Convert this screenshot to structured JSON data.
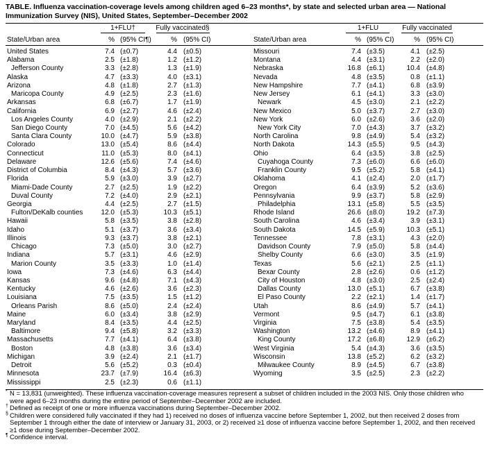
{
  "title": "TABLE. Influenza vaccination-coverage levels among children aged 6–23 months*, by state and selected urban area — National Immunization Survey (NIS), United States, September–December 2002",
  "panels": [
    {
      "headers": {
        "group1": "1+FLU†",
        "group2": "Fully vaccinated§",
        "area": "State/Urban area",
        "pct1": "%",
        "ci1": "(95% CI¶)",
        "pct2": "%",
        "ci2": "(95% CI)"
      },
      "rows": [
        {
          "name": "United States",
          "values": [
            "7.4",
            "(±0.7)",
            "4.4",
            "(±0.5)"
          ]
        },
        {
          "name": "Alabama",
          "values": [
            "2.5",
            "(±1.8)",
            "1.2",
            "(±1.2)"
          ],
          "areas": [
            {
              "name": "Jefferson County",
              "values": [
                "3.3",
                "(±2.8)",
                "1.3",
                "(±1.9)"
              ]
            }
          ]
        },
        {
          "name": "Alaska",
          "values": [
            "4.7",
            "(±3.3)",
            "4.0",
            "(±3.1)"
          ]
        },
        {
          "name": "Arizona",
          "values": [
            "4.8",
            "(±1.8)",
            "2.7",
            "(±1.3)"
          ],
          "areas": [
            {
              "name": "Maricopa County",
              "values": [
                "4.9",
                "(±2.5)",
                "2.3",
                "(±1.6)"
              ]
            }
          ]
        },
        {
          "name": "Arkansas",
          "values": [
            "6.8",
            "(±6.7)",
            "1.7",
            "(±1.9)"
          ]
        },
        {
          "name": "California",
          "values": [
            "6.9",
            "(±2.7)",
            "4.6",
            "(±2.4)"
          ],
          "areas": [
            {
              "name": "Los Angeles County",
              "values": [
                "4.0",
                "(±2.9)",
                "2.1",
                "(±2.2)"
              ]
            },
            {
              "name": "San Diego County",
              "values": [
                "7.0",
                "(±4.5)",
                "5.6",
                "(±4.2)"
              ]
            },
            {
              "name": "Santa Clara County",
              "values": [
                "10.0",
                "(±4.7)",
                "5.9",
                "(±3.8)"
              ]
            }
          ]
        },
        {
          "name": "Colorado",
          "values": [
            "13.0",
            "(±5.4)",
            "8.6",
            "(±4.4)"
          ]
        },
        {
          "name": "Connecticut",
          "values": [
            "11.0",
            "(±5.3)",
            "8.0",
            "(±4.1)"
          ]
        },
        {
          "name": "Delaware",
          "values": [
            "12.6",
            "(±5.6)",
            "7.4",
            "(±4.6)"
          ]
        },
        {
          "name": "District of Columbia",
          "values": [
            "8.4",
            "(±4.3)",
            "5.7",
            "(±3.6)"
          ]
        },
        {
          "name": "Florida",
          "values": [
            "5.9",
            "(±3.0)",
            "3.9",
            "(±2.7)"
          ],
          "areas": [
            {
              "name": "Miami-Dade County",
              "values": [
                "2.7",
                "(±2.5)",
                "1.9",
                "(±2.2)"
              ]
            },
            {
              "name": "Duval County",
              "values": [
                "7.2",
                "(±4.0)",
                "2.9",
                "(±2.1)"
              ]
            }
          ]
        },
        {
          "name": "Georgia",
          "values": [
            "4.4",
            "(±2.5)",
            "2.7",
            "(±1.5)"
          ],
          "areas": [
            {
              "name": "Fulton/DeKalb counties",
              "values": [
                "12.0",
                "(±5.3)",
                "10.3",
                "(±5.1)"
              ]
            }
          ]
        },
        {
          "name": "Hawaii",
          "values": [
            "5.8",
            "(±3.5)",
            "3.8",
            "(±2.8)"
          ]
        },
        {
          "name": "Idaho",
          "values": [
            "5.1",
            "(±3.7)",
            "3.6",
            "(±3.4)"
          ]
        },
        {
          "name": "Illinois",
          "values": [
            "9.3",
            "(±3.7)",
            "3.8",
            "(±2.1)"
          ],
          "areas": [
            {
              "name": "Chicago",
              "values": [
                "7.3",
                "(±5.0)",
                "3.0",
                "(±2.7)"
              ]
            }
          ]
        },
        {
          "name": "Indiana",
          "values": [
            "5.7",
            "(±3.1)",
            "4.6",
            "(±2.9)"
          ],
          "areas": [
            {
              "name": "Marion County",
              "values": [
                "3.5",
                "(±3.3)",
                "1.0",
                "(±1.4)"
              ]
            }
          ]
        },
        {
          "name": "Iowa",
          "values": [
            "7.3",
            "(±4.6)",
            "6.3",
            "(±4.4)"
          ]
        },
        {
          "name": "Kansas",
          "values": [
            "9.6",
            "(±4.8)",
            "7.1",
            "(±4.3)"
          ]
        },
        {
          "name": "Kentucky",
          "values": [
            "4.6",
            "(±2.6)",
            "3.6",
            "(±2.3)"
          ]
        },
        {
          "name": "Louisiana",
          "values": [
            "7.5",
            "(±3.5)",
            "1.5",
            "(±1.2)"
          ],
          "areas": [
            {
              "name": "Orleans Parish",
              "values": [
                "8.6",
                "(±5.0)",
                "2.4",
                "(±2.4)"
              ]
            }
          ]
        },
        {
          "name": "Maine",
          "values": [
            "6.0",
            "(±3.4)",
            "3.8",
            "(±2.9)"
          ]
        },
        {
          "name": "Maryland",
          "values": [
            "8.4",
            "(±3.5)",
            "4.4",
            "(±2.5)"
          ],
          "areas": [
            {
              "name": "Baltimore",
              "values": [
                "9.4",
                "(±5.8)",
                "3.2",
                "(±3.3)"
              ]
            }
          ]
        },
        {
          "name": "Massachusetts",
          "values": [
            "7.7",
            "(±4.1)",
            "6.4",
            "(±3.8)"
          ],
          "areas": [
            {
              "name": "Boston",
              "values": [
                "4.8",
                "(±3.8)",
                "3.6",
                "(±3.4)"
              ]
            }
          ]
        },
        {
          "name": "Michigan",
          "values": [
            "3.9",
            "(±2.4)",
            "2.1",
            "(±1.7)"
          ],
          "areas": [
            {
              "name": "Detroit",
              "values": [
                "5.6",
                "(±5.2)",
                "0.3",
                "(±0.4)"
              ]
            }
          ]
        },
        {
          "name": "Minnesota",
          "values": [
            "23.7",
            "(±7.9)",
            "16.4",
            "(±6.3)"
          ]
        },
        {
          "name": "Mississippi",
          "values": [
            "2.5",
            "(±2.3)",
            "0.6",
            "(±1.1)"
          ]
        }
      ]
    },
    {
      "headers": {
        "group1": "1+FLU",
        "group2": "Fully vaccinated",
        "area": "State/Urban area",
        "pct1": "%",
        "ci1": "(95% CI)",
        "pct2": "%",
        "ci2": "(95% CI)"
      },
      "rows": [
        {
          "name": "Missouri",
          "values": [
            "7.4",
            "(±3.5)",
            "4.1",
            "(±2.5)"
          ]
        },
        {
          "name": "Montana",
          "values": [
            "4.4",
            "(±3.1)",
            "2.2",
            "(±2.0)"
          ]
        },
        {
          "name": "Nebraska",
          "values": [
            "16.8",
            "(±6.1)",
            "10.4",
            "(±4.8)"
          ]
        },
        {
          "name": "Nevada",
          "values": [
            "4.8",
            "(±3.5)",
            "0.8",
            "(±1.1)"
          ]
        },
        {
          "name": "New Hampshire",
          "values": [
            "7.7",
            "(±4.1)",
            "6.8",
            "(±3.9)"
          ]
        },
        {
          "name": "New Jersey",
          "values": [
            "6.1",
            "(±4.1)",
            "3.3",
            "(±3.0)"
          ],
          "areas": [
            {
              "name": "Newark",
              "values": [
                "4.5",
                "(±3.0)",
                "2.1",
                "(±2.2)"
              ]
            }
          ]
        },
        {
          "name": "New Mexico",
          "values": [
            "5.0",
            "(±3.7)",
            "2.7",
            "(±3.0)"
          ]
        },
        {
          "name": "New York",
          "values": [
            "6.0",
            "(±2.6)",
            "3.6",
            "(±2.0)"
          ],
          "areas": [
            {
              "name": "New York City",
              "values": [
                "7.0",
                "(±4.3)",
                "3.7",
                "(±3.2)"
              ]
            }
          ]
        },
        {
          "name": "North Carolina",
          "values": [
            "9.8",
            "(±4.9)",
            "5.4",
            "(±3.2)"
          ]
        },
        {
          "name": "North Dakota",
          "values": [
            "14.3",
            "(±5.5)",
            "9.5",
            "(±4.3)"
          ]
        },
        {
          "name": "Ohio",
          "values": [
            "6.4",
            "(±3.5)",
            "3.8",
            "(±2.5)"
          ],
          "areas": [
            {
              "name": "Cuyahoga County",
              "values": [
                "7.3",
                "(±6.0)",
                "6.6",
                "(±6.0)"
              ]
            },
            {
              "name": "Franklin County",
              "values": [
                "9.5",
                "(±5.2)",
                "5.8",
                "(±4.1)"
              ]
            }
          ]
        },
        {
          "name": "Oklahoma",
          "values": [
            "4.1",
            "(±2.4)",
            "2.0",
            "(±1.7)"
          ]
        },
        {
          "name": "Oregon",
          "values": [
            "6.4",
            "(±3.9)",
            "5.2",
            "(±3.6)"
          ]
        },
        {
          "name": "Pennsylvania",
          "values": [
            "9.9",
            "(±3.7)",
            "5.8",
            "(±2.9)"
          ],
          "areas": [
            {
              "name": "Philadelphia",
              "values": [
                "13.1",
                "(±5.8)",
                "5.5",
                "(±3.5)"
              ]
            }
          ]
        },
        {
          "name": "Rhode Island",
          "values": [
            "26.6",
            "(±8.0)",
            "19.2",
            "(±7.3)"
          ]
        },
        {
          "name": "South Carolina",
          "values": [
            "4.6",
            "(±3.4)",
            "3.9",
            "(±3.1)"
          ]
        },
        {
          "name": "South Dakota",
          "values": [
            "14.5",
            "(±5.9)",
            "10.3",
            "(±5.1)"
          ]
        },
        {
          "name": "Tennessee",
          "values": [
            "7.8",
            "(±3.1)",
            "4.3",
            "(±2.0)"
          ],
          "areas": [
            {
              "name": "Davidson County",
              "values": [
                "7.9",
                "(±5.0)",
                "5.8",
                "(±4.4)"
              ]
            },
            {
              "name": "Shelby County",
              "values": [
                "6.6",
                "(±3.0)",
                "3.5",
                "(±1.9)"
              ]
            }
          ]
        },
        {
          "name": "Texas",
          "values": [
            "5.6",
            "(±2.1)",
            "2.5",
            "(±1.1)"
          ],
          "areas": [
            {
              "name": "Bexar County",
              "values": [
                "2.8",
                "(±2.6)",
                "0.6",
                "(±1.2)"
              ]
            },
            {
              "name": "City of Houston",
              "values": [
                "4.8",
                "(±3.0)",
                "2.5",
                "(±2.4)"
              ]
            },
            {
              "name": "Dallas County",
              "values": [
                "13.0",
                "(±5.1)",
                "6.7",
                "(±3.8)"
              ]
            },
            {
              "name": "El Paso County",
              "values": [
                "2.2",
                "(±2.1)",
                "1.4",
                "(±1.7)"
              ]
            }
          ]
        },
        {
          "name": "Utah",
          "values": [
            "8.6",
            "(±4.9)",
            "5.7",
            "(±4.1)"
          ]
        },
        {
          "name": "Vermont",
          "values": [
            "9.5",
            "(±4.7)",
            "6.1",
            "(±3.8)"
          ]
        },
        {
          "name": "Virginia",
          "values": [
            "7.5",
            "(±3.8)",
            "5.4",
            "(±3.5)"
          ]
        },
        {
          "name": "Washington",
          "values": [
            "13.2",
            "(±4.6)",
            "8.9",
            "(±4.1)"
          ],
          "areas": [
            {
              "name": "King County",
              "values": [
                "17.2",
                "(±6.8)",
                "12.9",
                "(±6.2)"
              ]
            }
          ]
        },
        {
          "name": "West Virginia",
          "values": [
            "5.4",
            "(±4.3)",
            "3.6",
            "(±3.5)"
          ]
        },
        {
          "name": "Wisconsin",
          "values": [
            "13.8",
            "(±5.2)",
            "6.2",
            "(±3.2)"
          ],
          "areas": [
            {
              "name": "Milwaukee County",
              "values": [
                "8.9",
                "(±4.5)",
                "6.7",
                "(±3.8)"
              ]
            }
          ]
        },
        {
          "name": "Wyoming",
          "values": [
            "3.5",
            "(±2.5)",
            "2.3",
            "(±2.2)"
          ]
        }
      ]
    }
  ],
  "footnotes": [
    {
      "mark": "*",
      "text": "N = 13,831 (unweighted). These influenza vaccination-coverage measures represent a subset of children included in the 2003 NIS. Only those children who were aged 6–23 months during the entire period of September–December 2002 are included."
    },
    {
      "mark": "†",
      "text": "Defined as receipt of one or more influenza vaccinations during September–December 2002."
    },
    {
      "mark": "§",
      "text": "Children were considered fully vaccinated if they had 1) received no doses of influenza vaccine before September 1, 2002, but then received 2 doses from September 1 through either the date of interview or January 31, 2003, or 2) received ≥1 dose of influenza vaccine before September 1, 2002, and then received ≥1 dose during September–December 2002."
    },
    {
      "mark": "¶",
      "text": "Confidence interval."
    }
  ]
}
